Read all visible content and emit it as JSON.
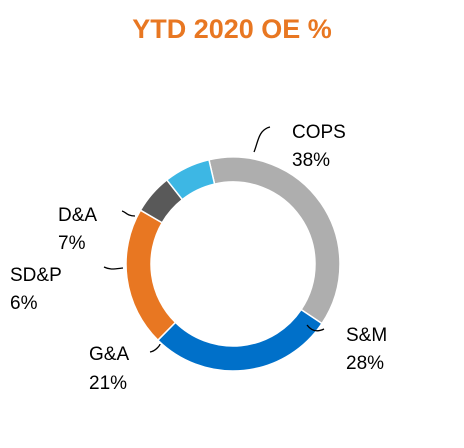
{
  "chart_data": {
    "type": "pie",
    "title": "YTD 2020 OE %",
    "slices": [
      {
        "name": "COPS",
        "value": 38,
        "label": "38%",
        "color": "#AEAEAE"
      },
      {
        "name": "S&M",
        "value": 28,
        "label": "28%",
        "color": "#0070C9"
      },
      {
        "name": "G&A",
        "value": 21,
        "label": "21%",
        "color": "#E87722"
      },
      {
        "name": "SD&P",
        "value": 6,
        "label": "6%",
        "color": "#595959"
      },
      {
        "name": "D&A",
        "value": 7,
        "label": "7%",
        "color": "#3DB7E4"
      }
    ],
    "donut": true,
    "legend": "none",
    "grid": false
  },
  "colors": {
    "title": "#E87722"
  }
}
